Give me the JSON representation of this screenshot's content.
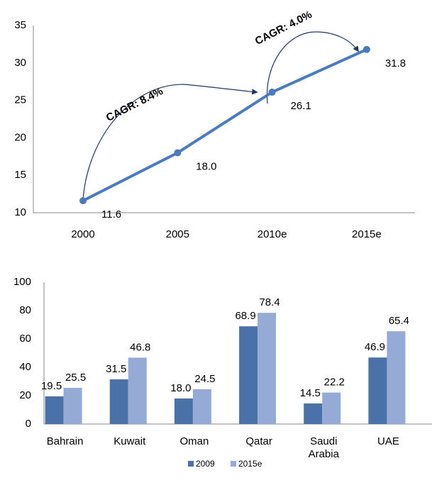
{
  "chart_data": [
    {
      "type": "line",
      "categories": [
        "2000",
        "2005",
        "2010e",
        "2015e"
      ],
      "series": [
        {
          "color": "#4a7bbf",
          "values": [
            11.6,
            18.0,
            26.1,
            31.8
          ],
          "value_labels": [
            "11.6",
            "18.0",
            "26.1",
            "31.8"
          ]
        }
      ],
      "annotations": [
        "CAGR: 8.4%",
        "CAGR: 4.0%"
      ],
      "ylim": [
        10,
        35
      ],
      "yticks": [
        10,
        15,
        20,
        25,
        30,
        35
      ],
      "grid": false
    },
    {
      "type": "bar",
      "categories": [
        "Bahrain",
        "Kuwait",
        "Oman",
        "Qatar",
        "Saudi Arabia",
        "UAE"
      ],
      "series": [
        {
          "name": "2009",
          "color": "#4a72a9",
          "values": [
            19.5,
            31.5,
            18.0,
            68.9,
            14.5,
            46.9
          ],
          "value_labels": [
            "19.5",
            "31.5",
            "18.0",
            "68.9",
            "14.5",
            "46.9"
          ]
        },
        {
          "name": "2015e",
          "color": "#95aad4",
          "values": [
            25.5,
            46.8,
            24.5,
            78.4,
            22.2,
            65.4
          ],
          "value_labels": [
            "25.5",
            "46.8",
            "24.5",
            "78.4",
            "22.2",
            "65.4"
          ]
        }
      ],
      "ylim": [
        0,
        100
      ],
      "yticks": [
        0,
        20,
        40,
        60,
        80,
        100
      ],
      "grid": false,
      "legend": "bottom"
    }
  ]
}
